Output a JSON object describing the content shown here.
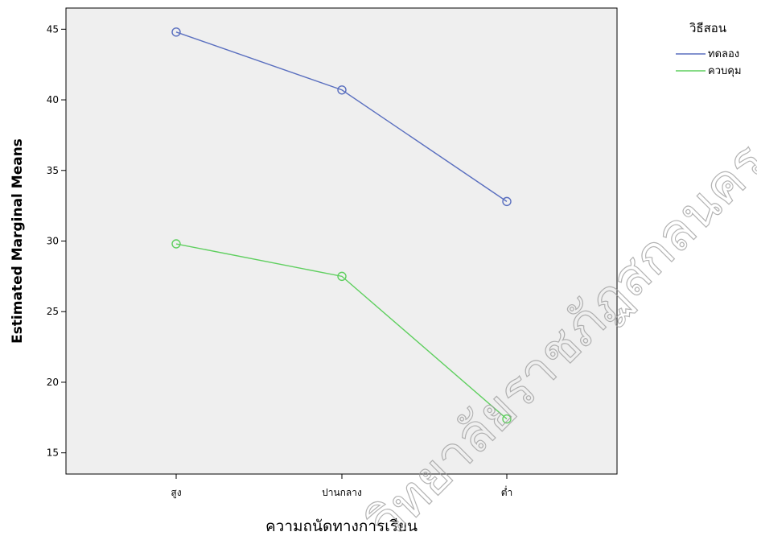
{
  "chart_data": {
    "type": "line",
    "title": "",
    "xlabel": "ความถนัดทางการเรียน",
    "ylabel": "Estimated Marginal Means",
    "categories": [
      "สูง",
      "ปานกลาง",
      "ต่ำ"
    ],
    "ylim": [
      13.5,
      46.5
    ],
    "yticks": [
      15,
      20,
      25,
      30,
      35,
      40,
      45
    ],
    "grid": false,
    "legend_title": "วิธีสอน",
    "legend_position": "top-right",
    "series": [
      {
        "name": "ทดลอง",
        "values": [
          44.8,
          40.7,
          32.8
        ],
        "color": "#5a6fbf"
      },
      {
        "name": "ควบคุม",
        "values": [
          29.8,
          27.5,
          17.4
        ],
        "color": "#5fcf5f"
      }
    ],
    "plot_background": "#efefef",
    "watermark": "วิทยาลัยราชภัฏสกลนคร"
  }
}
